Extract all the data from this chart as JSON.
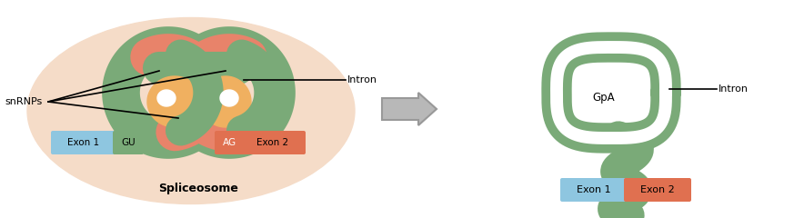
{
  "bg_color": "#ffffff",
  "ellipse_color": "#f5dcc8",
  "snrnp_green": "#7aaa78",
  "snrnp_orange": "#e8836a",
  "snrnp_yellow": "#f0b060",
  "exon1_color": "#8ec6e0",
  "exon2_color": "#e07050",
  "gu_color": "#7aaa78",
  "ag_color": "#e07050",
  "intron_lariat_color": "#7aaa78",
  "arrow_color": "#b8b8b8",
  "arrow_edge": "#999999",
  "text_color": "#000000",
  "spliceosome_label": "Spliceosome",
  "snrnps_label": "snRNPs",
  "intron_label": "Intron",
  "gpa_label": "GpA",
  "exon1_label": "Exon 1",
  "exon2_label": "Exon 2",
  "gu_label": "GU",
  "ag_label": "AG"
}
